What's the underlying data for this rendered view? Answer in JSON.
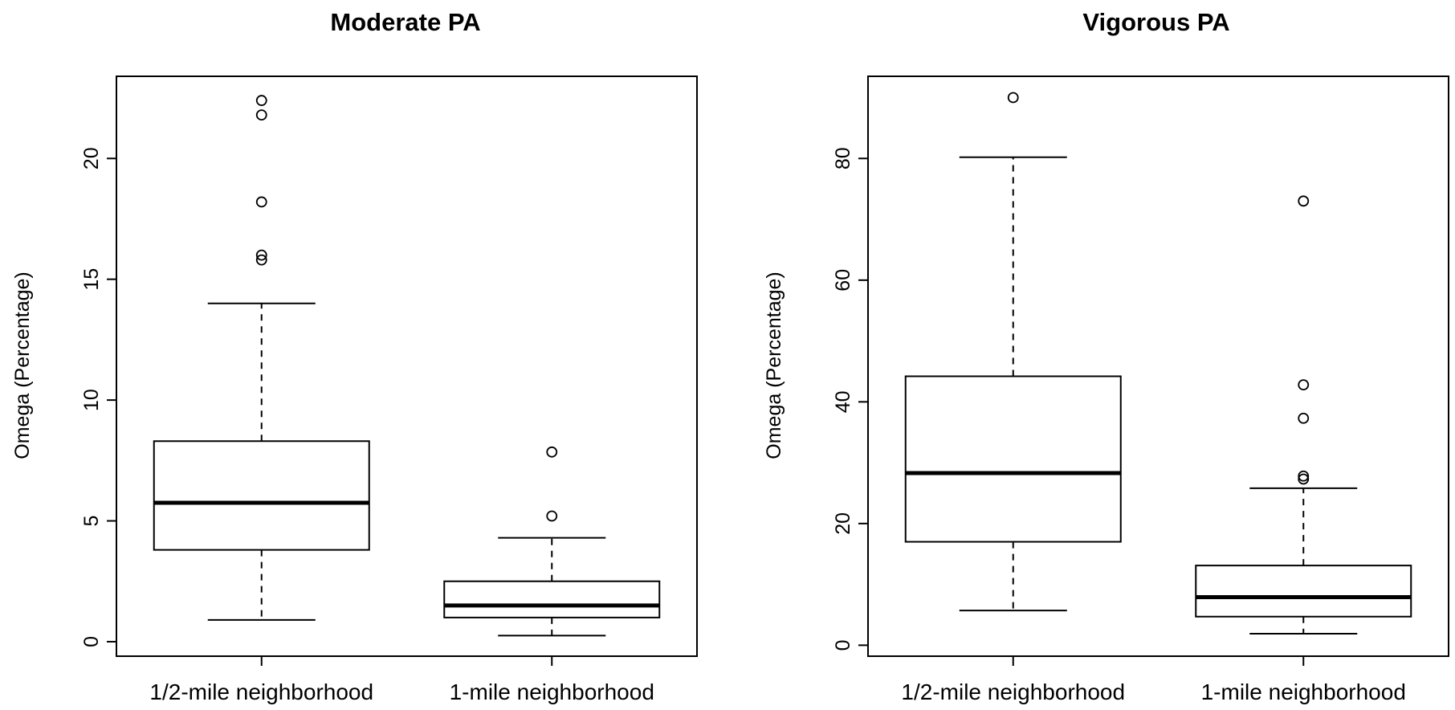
{
  "chart_data": [
    {
      "type": "boxplot",
      "title": "Moderate PA",
      "xlabel": "",
      "ylabel": "Omega (Percentage)",
      "ylim": [
        -0.6,
        23.4
      ],
      "yticks": [
        0,
        5,
        10,
        15,
        20
      ],
      "grid": false,
      "categories": [
        "1/2-mile neighborhood",
        "1-mile neighborhood"
      ],
      "boxes": [
        {
          "name": "1/2-mile neighborhood",
          "whisker_low": 0.9,
          "q1": 3.8,
          "median": 5.75,
          "q3": 8.3,
          "whisker_high": 14.0,
          "outliers": [
            15.8,
            16.0,
            18.2,
            21.8,
            22.4
          ]
        },
        {
          "name": "1-mile neighborhood",
          "whisker_low": 0.25,
          "q1": 1.0,
          "median": 1.5,
          "q3": 2.5,
          "whisker_high": 4.3,
          "outliers": [
            5.2,
            7.85
          ]
        }
      ]
    },
    {
      "type": "boxplot",
      "title": "Vigorous PA",
      "xlabel": "",
      "ylabel": "Omega (Percentage)",
      "ylim": [
        -1.8,
        93.5
      ],
      "yticks": [
        0,
        20,
        40,
        60,
        80
      ],
      "grid": false,
      "categories": [
        "1/2-mile neighborhood",
        "1-mile neighborhood"
      ],
      "boxes": [
        {
          "name": "1/2-mile neighborhood",
          "whisker_low": 5.7,
          "q1": 17.0,
          "median": 28.3,
          "q3": 44.2,
          "whisker_high": 80.2,
          "outliers": [
            90.0
          ]
        },
        {
          "name": "1-mile neighborhood",
          "whisker_low": 1.9,
          "q1": 4.7,
          "median": 7.9,
          "q3": 13.1,
          "whisker_high": 25.8,
          "outliers": [
            27.3,
            27.8,
            37.3,
            42.8,
            73.0
          ]
        }
      ]
    }
  ]
}
